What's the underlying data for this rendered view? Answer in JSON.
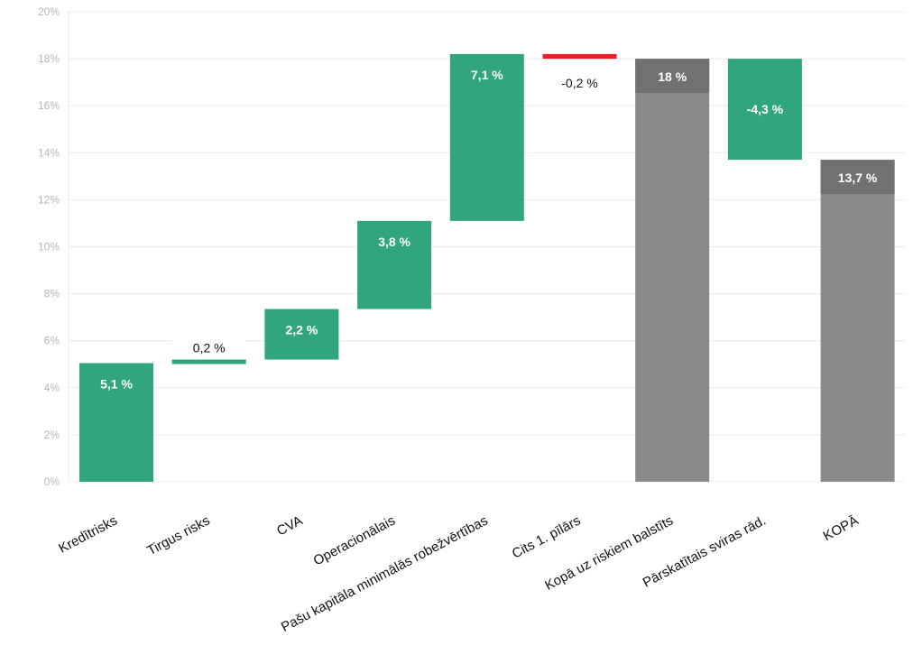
{
  "chart_data": {
    "type": "bar",
    "subtype": "waterfall",
    "title": "",
    "xlabel": "",
    "ylabel": "",
    "ylim": [
      0,
      20
    ],
    "y_ticks": [
      "0%",
      "2%",
      "4%",
      "6%",
      "8%",
      "10%",
      "12%",
      "14%",
      "16%",
      "18%",
      "20%"
    ],
    "grid": true,
    "categories": [
      "Kredītrisks",
      "Tirgus risks",
      "CVA",
      "Operacionālais",
      "Pašu kapitāla minimālās robežvērtības",
      "Cits 1. pīlārs",
      "Kopā uz riskiem balstīts",
      "Pārskatītais sviras rād.",
      "KOPĀ"
    ],
    "steps": [
      {
        "kind": "increase",
        "start": 0.0,
        "end": 5.05,
        "label": "5,1 %"
      },
      {
        "kind": "increase",
        "start": 5.05,
        "end": 5.2,
        "label": "0,2 %"
      },
      {
        "kind": "increase",
        "start": 5.2,
        "end": 7.35,
        "label": "2,2 %"
      },
      {
        "kind": "increase",
        "start": 7.35,
        "end": 11.1,
        "label": "3,8 %"
      },
      {
        "kind": "increase",
        "start": 11.1,
        "end": 18.2,
        "label": "7,1 %"
      },
      {
        "kind": "decrease",
        "start": 18.2,
        "end": 18.0,
        "label": "-0,2 %"
      },
      {
        "kind": "total",
        "start": 0.0,
        "end": 18.0,
        "label": "18 %"
      },
      {
        "kind": "decrease",
        "start": 18.0,
        "end": 13.7,
        "label": "-4,3 %"
      },
      {
        "kind": "total",
        "start": 0.0,
        "end": 13.7,
        "label": "13,7 %"
      }
    ],
    "colors": {
      "increase": "#31a57b",
      "decrease": "#31a57b",
      "small_decrease": "#ee1c25",
      "total": "#8b8a8a",
      "total_label_bg": "#737070",
      "grid": "#ececec",
      "tick": "#b5b5b5"
    }
  }
}
